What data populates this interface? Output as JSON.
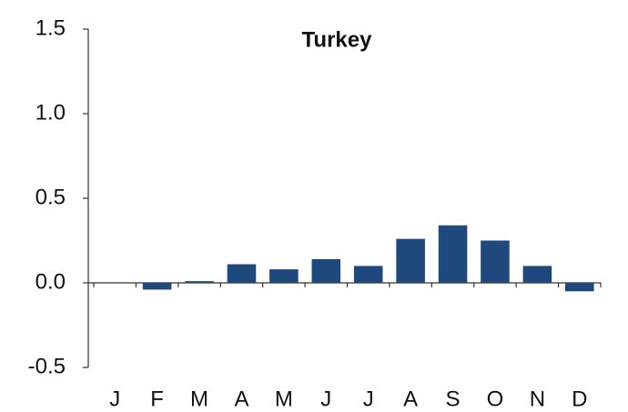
{
  "chart_data": {
    "type": "bar",
    "title": "Turkey",
    "categories": [
      "J",
      "F",
      "M",
      "A",
      "M",
      "J",
      "J",
      "A",
      "S",
      "O",
      "N",
      "D"
    ],
    "values": [
      0,
      -0.04,
      0.01,
      0.11,
      0.08,
      0.14,
      0.1,
      0.26,
      0.34,
      0.25,
      0.1,
      -0.05
    ],
    "color": "#1f497d",
    "ylim": [
      -0.5,
      1.5
    ],
    "yticks": [
      -0.5,
      {
        "value": 0,
        "label": "0.0"
      },
      0.5,
      {
        "value": 1,
        "label": "1.0"
      },
      1.5
    ]
  }
}
